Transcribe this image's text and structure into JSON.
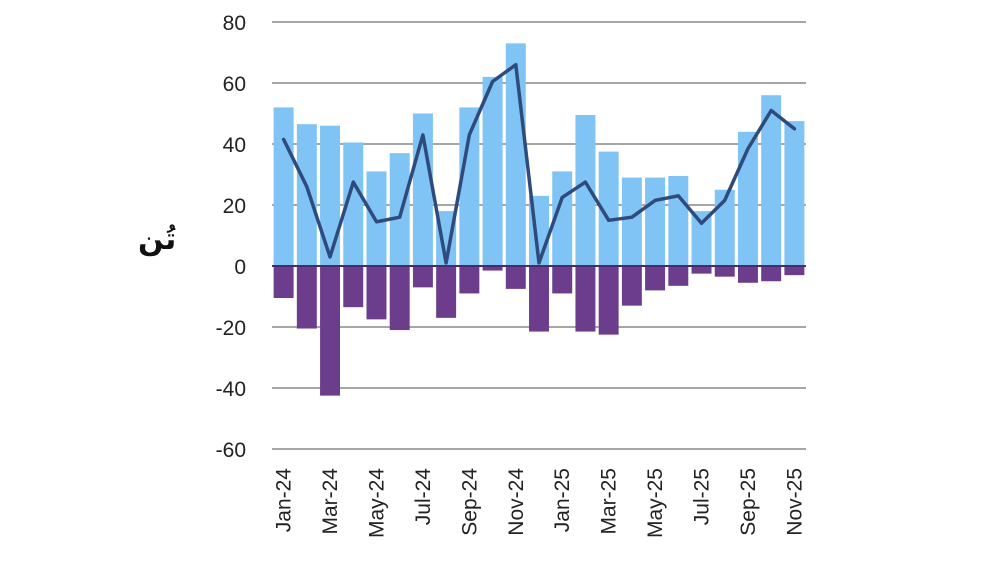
{
  "chart_data": {
    "type": "bar",
    "ylabel": "تُن",
    "ylim": [
      -60,
      80
    ],
    "yticks": [
      80,
      60,
      40,
      20,
      0,
      -20,
      -40,
      -60
    ],
    "categories": [
      "Jan-24",
      "Feb-24",
      "Mar-24",
      "Apr-24",
      "May-24",
      "Jun-24",
      "Jul-24",
      "Aug-24",
      "Sep-24",
      "Oct-24",
      "Nov-24",
      "Dec-24",
      "Jan-25",
      "Feb-25",
      "Mar-25",
      "Apr-25",
      "May-25",
      "Jun-25",
      "Jul-25",
      "Aug-25",
      "Sep-25",
      "Oct-25",
      "Nov-25"
    ],
    "xtick_labels": [
      "Jan-24",
      "",
      "Mar-24",
      "",
      "May-24",
      "",
      "Jul-24",
      "",
      "Sep-24",
      "",
      "Nov-24",
      "",
      "Jan-25",
      "",
      "Mar-25",
      "",
      "May-25",
      "",
      "Jul-25",
      "",
      "Sep-25",
      "",
      "Nov-25"
    ],
    "grid": true,
    "series": [
      {
        "kind": "bar",
        "color": "#7fc4f5",
        "values": [
          52,
          46.5,
          46,
          40.5,
          31,
          37,
          50,
          18,
          52,
          62,
          73,
          23,
          31,
          49.5,
          37.5,
          29,
          29,
          29.5,
          18,
          25,
          44,
          56,
          47.5
        ]
      },
      {
        "kind": "bar",
        "color": "#6c3d8c",
        "values": [
          -10.5,
          -20.5,
          -42.5,
          -13.5,
          -17.5,
          -21,
          -7,
          -17,
          -9,
          -1.5,
          -7.5,
          -21.5,
          -9,
          -21.5,
          -22.5,
          -13,
          -8,
          -6.5,
          -2.5,
          -3.5,
          -5.5,
          -5,
          -3
        ]
      },
      {
        "kind": "line",
        "color": "#2f4a7c",
        "values": [
          41.5,
          26,
          3,
          27.5,
          14.5,
          16,
          43,
          1,
          43,
          60.5,
          66,
          1,
          22.5,
          27.5,
          15,
          16,
          21.5,
          23,
          14,
          21.5,
          38.5,
          51,
          45
        ]
      }
    ]
  }
}
